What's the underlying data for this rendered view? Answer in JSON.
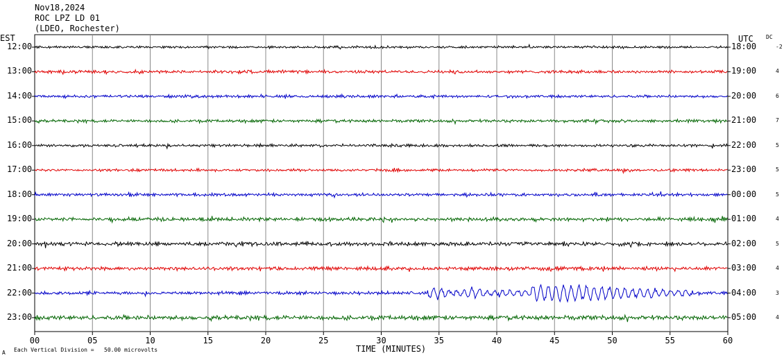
{
  "header": {
    "date": "Nov18,2024",
    "station": "ROC LPZ LD 01",
    "network": "(LDEO, Rochester)"
  },
  "left_zone": "EST",
  "right_zone": "UTC",
  "dc_label": "DC",
  "footer": {
    "xlabel": "TIME (MINUTES)",
    "scale_note": "Each Vertical Division =   50.00 microvolts",
    "corner_mark": "A"
  },
  "colors": [
    "#000000",
    "#e00000",
    "#0000c8",
    "#006400"
  ],
  "chart_data": {
    "type": "line",
    "title": "ROC LPZ LD 01",
    "xlabel": "TIME (MINUTES)",
    "ylabel": "",
    "xlim": [
      0,
      60
    ],
    "x_ticks": [
      "00",
      "05",
      "10",
      "15",
      "20",
      "25",
      "30",
      "35",
      "40",
      "45",
      "50",
      "55",
      "60"
    ],
    "grid": true,
    "rows": [
      {
        "est": "12:00",
        "utc": "18:00",
        "dc": "-2",
        "amp": 2.0,
        "color": "#000000"
      },
      {
        "est": "13:00",
        "utc": "19:00",
        "dc": "4",
        "amp": 2.5,
        "color": "#e00000"
      },
      {
        "est": "14:00",
        "utc": "20:00",
        "dc": "6",
        "amp": 2.3,
        "color": "#0000c8"
      },
      {
        "est": "15:00",
        "utc": "21:00",
        "dc": "7",
        "amp": 2.5,
        "color": "#006400"
      },
      {
        "est": "16:00",
        "utc": "22:00",
        "dc": "5",
        "amp": 2.3,
        "color": "#000000"
      },
      {
        "est": "17:00",
        "utc": "23:00",
        "dc": "5",
        "amp": 2.2,
        "color": "#e00000"
      },
      {
        "est": "18:00",
        "utc": "00:00",
        "dc": "5",
        "amp": 2.4,
        "color": "#0000c8"
      },
      {
        "est": "19:00",
        "utc": "01:00",
        "dc": "4",
        "amp": 3.0,
        "color": "#006400"
      },
      {
        "est": "20:00",
        "utc": "02:00",
        "dc": "5",
        "amp": 3.2,
        "color": "#000000"
      },
      {
        "est": "21:00",
        "utc": "03:00",
        "dc": "4",
        "amp": 3.0,
        "color": "#e00000"
      },
      {
        "est": "22:00",
        "utc": "04:00",
        "dc": "3",
        "amp": 2.8,
        "color": "#0000c8",
        "event": {
          "start_min": 34.0,
          "peak_min": 45.0,
          "end_min": 57.0,
          "peak_amp": 15
        }
      },
      {
        "est": "23:00",
        "utc": "05:00",
        "dc": "4",
        "amp": 3.8,
        "color": "#006400"
      }
    ]
  }
}
